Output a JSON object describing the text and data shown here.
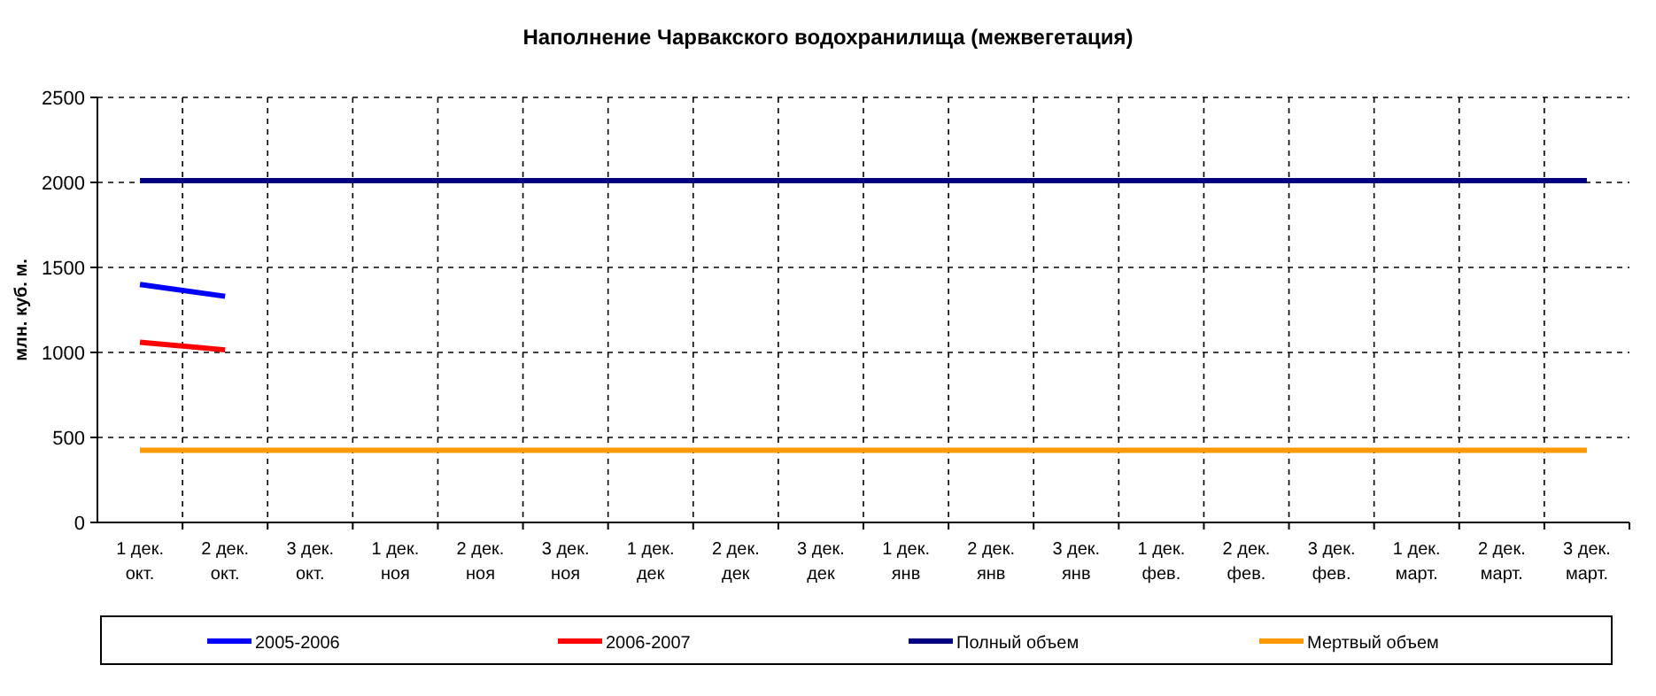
{
  "chart_data": {
    "type": "line",
    "title": "Наполнение Чарвакского водохранилища  (межвегетация)",
    "ylabel": "млн. куб. м.",
    "categories": [
      "1 дек.\nокт.",
      "2 дек.\nокт.",
      "3 дек.\nокт.",
      "1 дек.\nноя",
      "2 дек.\nноя",
      "3 дек.\nноя",
      "1 дек.\nдек",
      "2 дек.\nдек",
      "3 дек.\nдек",
      "1 дек.\nянв",
      "2 дек.\nянв",
      "3 дек.\nянв",
      "1 дек.\nфев.",
      "2 дек.\nфев.",
      "3 дек.\nфев.",
      "1 дек.\nмарт.",
      "2 дек.\nмарт.",
      "3 дек.\nмарт."
    ],
    "series": [
      {
        "name": "2005-2006",
        "color": "#0000ff",
        "values": [
          1400,
          1330,
          null,
          null,
          null,
          null,
          null,
          null,
          null,
          null,
          null,
          null,
          null,
          null,
          null,
          null,
          null,
          null
        ]
      },
      {
        "name": "2006-2007",
        "color": "#ff0000",
        "values": [
          1060,
          1015,
          null,
          null,
          null,
          null,
          null,
          null,
          null,
          null,
          null,
          null,
          null,
          null,
          null,
          null,
          null,
          null
        ]
      },
      {
        "name": "Полный объем",
        "color": "#000080",
        "values": [
          2010,
          2010,
          2010,
          2010,
          2010,
          2010,
          2010,
          2010,
          2010,
          2010,
          2010,
          2010,
          2010,
          2010,
          2010,
          2010,
          2010,
          2010
        ]
      },
      {
        "name": "Мертвый объем",
        "color": "#ff9900",
        "values": [
          425,
          425,
          425,
          425,
          425,
          425,
          425,
          425,
          425,
          425,
          425,
          425,
          425,
          425,
          425,
          425,
          425,
          425
        ]
      }
    ],
    "ylim": [
      0,
      2500
    ],
    "yticks": [
      0,
      500,
      1000,
      1500,
      2000,
      2500
    ],
    "grid": true,
    "legend": "bottom",
    "marker": "none",
    "line_style": "solid"
  }
}
